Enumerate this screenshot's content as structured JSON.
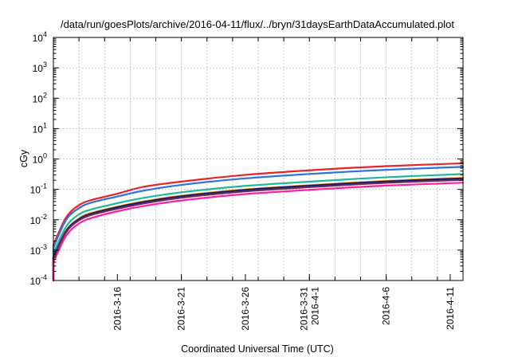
{
  "chart_data": {
    "type": "line",
    "title": "/data/run/goesPlots/archive/2016-04-11/flux/../bryn/31daysEarthDataAccumulated.plot",
    "xlabel": "Coordinated Universal Time (UTC)",
    "ylabel": "cGy",
    "y_scale": "log",
    "ylim": [
      0.0001,
      10000
    ],
    "xlim": [
      "2016-03-11",
      "2016-04-12"
    ],
    "grid": true,
    "legend": "none",
    "x_ticks": [
      {
        "date": "2016-03-16",
        "label": "2016-3-16"
      },
      {
        "date": "2016-03-21",
        "label": "2016-3-21"
      },
      {
        "date": "2016-03-26",
        "label": "2016-3-26"
      },
      {
        "date": "2016-03-31",
        "label": "2016-3-31",
        "label2": "2016-4-1"
      },
      {
        "date": "2016-04-06",
        "label": "2016-4-6"
      },
      {
        "date": "2016-04-11",
        "label": "2016-4-11"
      }
    ],
    "y_ticks": [
      {
        "value": 0.0001,
        "base": "10",
        "exp": "-4"
      },
      {
        "value": 0.001,
        "base": "10",
        "exp": "-3"
      },
      {
        "value": 0.01,
        "base": "10",
        "exp": "-2"
      },
      {
        "value": 0.1,
        "base": "10",
        "exp": "-1"
      },
      {
        "value": 1,
        "base": "10",
        "exp": "0"
      },
      {
        "value": 10,
        "base": "10",
        "exp": "1"
      },
      {
        "value": 100,
        "base": "10",
        "exp": "2"
      },
      {
        "value": 1000,
        "base": "10",
        "exp": "3"
      },
      {
        "value": 10000,
        "base": "10",
        "exp": "4"
      }
    ],
    "series": [
      {
        "color": "#e8232a",
        "x": [
          "2016-03-11",
          "2016-03-12",
          "2016-03-13",
          "2016-03-14",
          "2016-03-16",
          "2016-03-18",
          "2016-03-21",
          "2016-03-26",
          "2016-04-01",
          "2016-04-06",
          "2016-04-12"
        ],
        "values": [
          0.0015,
          0.012,
          0.03,
          0.045,
          0.072,
          0.12,
          0.18,
          0.3,
          0.45,
          0.58,
          0.72
        ]
      },
      {
        "color": "#2f74d9",
        "x": [
          "2016-03-11",
          "2016-03-12",
          "2016-03-13",
          "2016-03-14",
          "2016-03-16",
          "2016-03-18",
          "2016-03-21",
          "2016-03-26",
          "2016-04-01",
          "2016-04-06",
          "2016-04-12"
        ],
        "values": [
          0.0012,
          0.01,
          0.024,
          0.037,
          0.058,
          0.09,
          0.14,
          0.23,
          0.34,
          0.44,
          0.55
        ]
      },
      {
        "color": "#20b89a",
        "x": [
          "2016-03-11",
          "2016-03-12",
          "2016-03-13",
          "2016-03-14",
          "2016-03-16",
          "2016-03-18",
          "2016-03-21",
          "2016-03-26",
          "2016-04-01",
          "2016-04-06",
          "2016-04-12"
        ],
        "values": [
          0.0008,
          0.006,
          0.015,
          0.022,
          0.035,
          0.052,
          0.08,
          0.13,
          0.19,
          0.25,
          0.32
        ]
      },
      {
        "color": "#f0a000",
        "x": [
          "2016-03-11",
          "2016-03-12",
          "2016-03-13",
          "2016-03-14",
          "2016-03-16",
          "2016-03-18",
          "2016-03-21",
          "2016-03-26",
          "2016-04-01",
          "2016-04-06",
          "2016-04-12"
        ],
        "values": [
          0.0006,
          0.0045,
          0.011,
          0.017,
          0.027,
          0.04,
          0.062,
          0.1,
          0.145,
          0.19,
          0.24
        ]
      },
      {
        "color": "#1a1a6a",
        "x": [
          "2016-03-11",
          "2016-03-12",
          "2016-03-13",
          "2016-03-14",
          "2016-03-16",
          "2016-03-18",
          "2016-03-21",
          "2016-03-26",
          "2016-04-01",
          "2016-04-06",
          "2016-04-12"
        ],
        "values": [
          0.00058,
          0.0043,
          0.0105,
          0.016,
          0.026,
          0.038,
          0.059,
          0.096,
          0.14,
          0.182,
          0.23
        ]
      },
      {
        "color": "#6a2a5a",
        "x": [
          "2016-03-11",
          "2016-03-12",
          "2016-03-13",
          "2016-03-14",
          "2016-03-16",
          "2016-03-18",
          "2016-03-21",
          "2016-03-26",
          "2016-04-01",
          "2016-04-06",
          "2016-04-12"
        ],
        "values": [
          0.00052,
          0.0039,
          0.0095,
          0.0145,
          0.023,
          0.034,
          0.053,
          0.086,
          0.125,
          0.164,
          0.205
        ]
      },
      {
        "color": "#ff1fa0",
        "x": [
          "2016-03-11",
          "2016-03-12",
          "2016-03-13",
          "2016-03-14",
          "2016-03-16",
          "2016-03-18",
          "2016-03-21",
          "2016-03-26",
          "2016-04-01",
          "2016-04-06",
          "2016-04-12"
        ],
        "values": [
          0.0004,
          0.003,
          0.0075,
          0.0115,
          0.019,
          0.028,
          0.043,
          0.07,
          0.102,
          0.133,
          0.165
        ]
      }
    ]
  }
}
